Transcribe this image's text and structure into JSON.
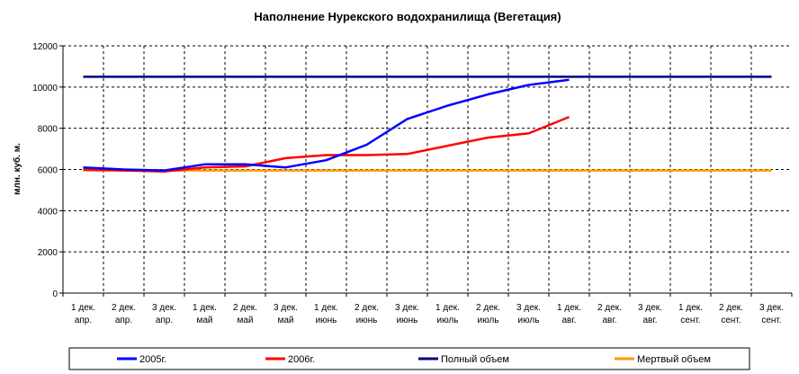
{
  "chart_data": {
    "type": "line",
    "title": "Наполнение Нурекского водохранилища (Вегетация)",
    "xlabel": "",
    "ylabel": "млн. куб. м.",
    "ylim": [
      0,
      12000
    ],
    "yticks": [
      "0",
      "2000",
      "4000",
      "6000",
      "8000",
      "10000",
      "12000"
    ],
    "grid": true,
    "legend_position": "bottom",
    "categories": [
      [
        "1 дек.",
        "апр."
      ],
      [
        "2 дек.",
        "апр."
      ],
      [
        "3 дек.",
        "апр."
      ],
      [
        "1 дек.",
        "май"
      ],
      [
        "2 дек.",
        "май"
      ],
      [
        "3 дек.",
        "май"
      ],
      [
        "1 дек.",
        "июнь"
      ],
      [
        "2 дек.",
        "июнь"
      ],
      [
        "3 дек.",
        "июнь"
      ],
      [
        "1 дек.",
        "июль"
      ],
      [
        "2 дек.",
        "июль"
      ],
      [
        "3 дек.",
        "июль"
      ],
      [
        "1 дек.",
        "авг."
      ],
      [
        "2 дек.",
        "авг."
      ],
      [
        "3 дек.",
        "авг."
      ],
      [
        "1 дек.",
        "сент."
      ],
      [
        "2 дек.",
        "сент."
      ],
      [
        "3 дек.",
        "сент."
      ]
    ],
    "series": [
      {
        "name": "2005г.",
        "color": "#0000ff",
        "values": [
          6100,
          6000,
          5950,
          6250,
          6250,
          6100,
          6450,
          7200,
          8450,
          9100,
          9650,
          10100,
          10350,
          null,
          null,
          null,
          null,
          null
        ]
      },
      {
        "name": "2006г.",
        "color": "#ff0000",
        "values": [
          6000,
          5950,
          5900,
          6100,
          6150,
          6550,
          6700,
          6700,
          6750,
          7150,
          7550,
          7750,
          8550,
          null,
          null,
          null,
          null,
          null
        ]
      },
      {
        "name": "Полный объем",
        "color": "#000080",
        "values": [
          10500,
          10500,
          10500,
          10500,
          10500,
          10500,
          10500,
          10500,
          10500,
          10500,
          10500,
          10500,
          10500,
          10500,
          10500,
          10500,
          10500,
          10500
        ]
      },
      {
        "name": "Мертвый объем",
        "color": "#ff9900",
        "values": [
          5950,
          5950,
          5950,
          5950,
          5950,
          5950,
          5950,
          5950,
          5950,
          5950,
          5950,
          5950,
          5950,
          5950,
          5950,
          5950,
          5950,
          5950
        ]
      }
    ]
  }
}
